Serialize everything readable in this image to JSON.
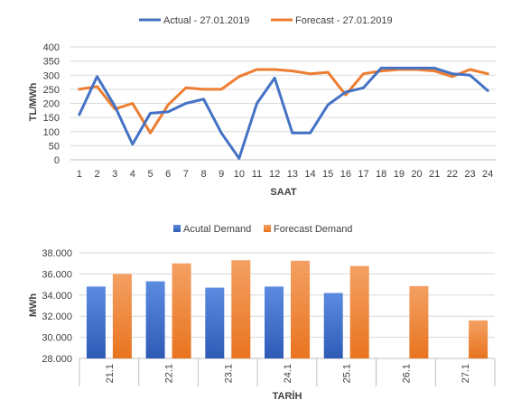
{
  "colors": {
    "actual": "#4472C4",
    "forecast": "#ED7D31",
    "grid": "#d9d9d9",
    "axis": "#bfbfbf",
    "text": "#404040",
    "bar_blue_top": "#5B8BE0",
    "bar_blue_bottom": "#2F5BB7",
    "bar_orange_top": "#F4A063",
    "bar_orange_bottom": "#E8741F"
  },
  "chart_data": [
    {
      "type": "line",
      "title": "",
      "xlabel": "SAAT",
      "ylabel": "TL/MWh",
      "ylim": [
        0,
        400
      ],
      "yticks": [
        "0",
        "50",
        "100",
        "150",
        "200",
        "250",
        "300",
        "350",
        "400"
      ],
      "x": [
        "1",
        "2",
        "3",
        "4",
        "5",
        "6",
        "7",
        "8",
        "9",
        "10",
        "11",
        "12",
        "13",
        "14",
        "15",
        "16",
        "17",
        "18",
        "19",
        "20",
        "21",
        "22",
        "23",
        "24"
      ],
      "series": [
        {
          "name": "Actual - 27.01.2019",
          "color": "#4472C4",
          "values": [
            160,
            295,
            190,
            55,
            165,
            170,
            200,
            215,
            95,
            5,
            200,
            290,
            95,
            95,
            195,
            240,
            255,
            325,
            325,
            325,
            325,
            305,
            300,
            245
          ]
        },
        {
          "name": "Forecast - 27.01.2019",
          "color": "#ED7D31",
          "values": [
            250,
            260,
            180,
            200,
            95,
            195,
            255,
            250,
            250,
            295,
            320,
            320,
            315,
            305,
            310,
            230,
            305,
            315,
            320,
            320,
            315,
            295,
            320,
            305
          ]
        }
      ],
      "legend": "top",
      "grid": true
    },
    {
      "type": "bar",
      "title": "",
      "xlabel": "TARİH",
      "ylabel": "MWh",
      "ylim": [
        28000,
        38000
      ],
      "yticks": [
        "28.000",
        "30.000",
        "32.000",
        "34.000",
        "36.000",
        "38.000"
      ],
      "categories": [
        "21.1",
        "22.1",
        "23.1",
        "24.1",
        "25.1",
        "26.1",
        "27.1"
      ],
      "series": [
        {
          "name": "Acutal Demand",
          "color": "#4472C4",
          "values": [
            34800,
            35300,
            34700,
            34800,
            34200,
            null,
            null
          ]
        },
        {
          "name": "Forecast Demand",
          "color": "#ED7D31",
          "values": [
            36000,
            37000,
            37300,
            37250,
            36750,
            34850,
            31600
          ]
        }
      ],
      "legend": "top",
      "grid": true
    }
  ]
}
